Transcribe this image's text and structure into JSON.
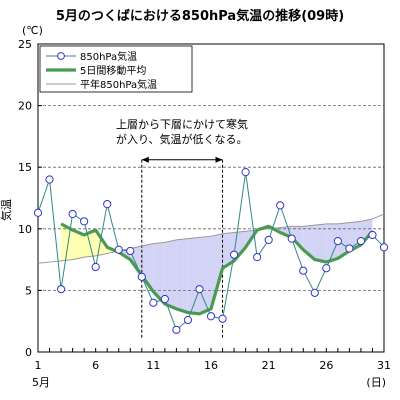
{
  "chart_data": {
    "type": "line",
    "title": "5月のつくばにおける850hPa気温の推移(09時)",
    "y_unit": "(℃)",
    "ylabel": "気温",
    "x_unit": "(日)",
    "month_label": "5月",
    "x": [
      1,
      2,
      3,
      4,
      5,
      6,
      7,
      8,
      9,
      10,
      11,
      12,
      13,
      14,
      15,
      16,
      17,
      18,
      19,
      20,
      21,
      22,
      23,
      24,
      25,
      26,
      27,
      28,
      29,
      30,
      31
    ],
    "xlim": [
      1,
      31
    ],
    "ylim": [
      0,
      25
    ],
    "x_ticks": [
      1,
      6,
      11,
      16,
      21,
      26,
      31
    ],
    "y_ticks": [
      0,
      5,
      10,
      15,
      20,
      25
    ],
    "grid": "horizontal-dashed",
    "legend_position": "top-left",
    "series": [
      {
        "name": "850hPa気温",
        "style": "line-with-circle-markers",
        "color": "#2e8b84",
        "values": [
          11.3,
          14.0,
          5.1,
          11.2,
          10.6,
          6.9,
          12.0,
          8.3,
          8.2,
          6.1,
          4.0,
          4.3,
          1.8,
          2.6,
          5.1,
          2.9,
          2.7,
          7.9,
          14.6,
          7.7,
          9.1,
          11.9,
          9.2,
          6.6,
          4.8,
          6.8,
          9.0,
          8.4,
          9.0,
          9.5,
          8.5
        ]
      },
      {
        "name": "5日間移動平均",
        "style": "thick-line",
        "color": "#4a9a52",
        "values": [
          null,
          null,
          10.4,
          9.9,
          9.5,
          9.9,
          8.5,
          8.1,
          7.5,
          6.2,
          4.9,
          3.9,
          3.5,
          3.2,
          3.1,
          3.5,
          6.8,
          7.4,
          8.5,
          9.9,
          10.2,
          9.7,
          9.3,
          8.3,
          7.5,
          7.3,
          7.6,
          8.2,
          8.7,
          9.8,
          null
        ]
      },
      {
        "name": "平年850hPa気温",
        "style": "thin-line",
        "color": "#999999",
        "values": [
          7.2,
          7.3,
          7.4,
          7.5,
          7.7,
          7.8,
          8.0,
          8.2,
          8.4,
          8.6,
          8.8,
          8.9,
          9.1,
          9.2,
          9.3,
          9.4,
          9.6,
          9.7,
          9.8,
          9.9,
          10.0,
          10.1,
          10.2,
          10.2,
          10.3,
          10.4,
          10.4,
          10.5,
          10.6,
          10.8,
          11.2
        ]
      }
    ],
    "fill_colors": {
      "above_normal": "#ffffb3",
      "below_normal": "#d3d3f5"
    },
    "annotation": {
      "lines": [
        "上層から下層にかけて寒気",
        "が入り、気温が低くなる。"
      ],
      "range": [
        10,
        17
      ]
    }
  }
}
